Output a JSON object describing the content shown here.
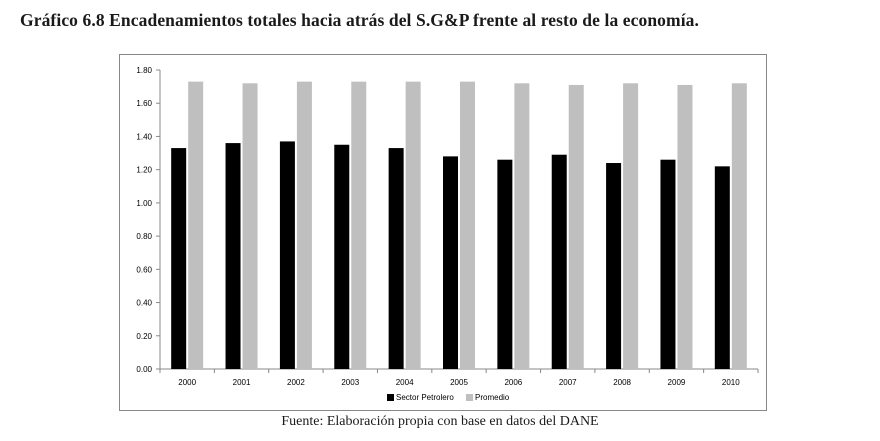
{
  "page_title": "Gráfico 6.8 Encadenamientos totales hacia atrás del S.G&P  frente al resto de la economía.",
  "source": "Fuente: Elaboración propia con base en datos del DANE",
  "chart_data": {
    "type": "bar",
    "categories": [
      "2000",
      "2001",
      "2002",
      "2003",
      "2004",
      "2005",
      "2006",
      "2007",
      "2008",
      "2009",
      "2010"
    ],
    "series": [
      {
        "name": "Sector Petrolero",
        "color": "#000000",
        "values": [
          1.33,
          1.36,
          1.37,
          1.35,
          1.33,
          1.28,
          1.26,
          1.29,
          1.24,
          1.26,
          1.22
        ]
      },
      {
        "name": "Promedio",
        "color": "#bfbfbf",
        "values": [
          1.73,
          1.72,
          1.73,
          1.73,
          1.73,
          1.73,
          1.72,
          1.71,
          1.72,
          1.71,
          1.72
        ]
      }
    ],
    "yticks": [
      "0.00",
      "0.20",
      "0.40",
      "0.60",
      "0.80",
      "1.00",
      "1.20",
      "1.40",
      "1.60",
      "1.80"
    ],
    "ylim": [
      0,
      1.8
    ],
    "grid": false,
    "legend_position": "bottom"
  }
}
